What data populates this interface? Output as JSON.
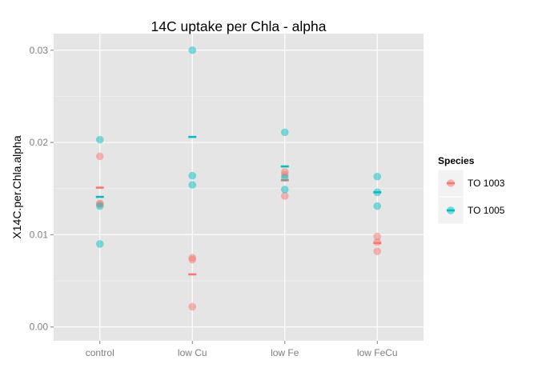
{
  "chart_data": {
    "type": "scatter",
    "title": "14C uptake per Chla - alpha",
    "xlabel": "",
    "ylabel": "X14C.per.Chla.alpha",
    "categories": [
      "control",
      "low Cu",
      "low Fe",
      "low FeCu"
    ],
    "ylim": [
      -0.0015,
      0.0318
    ],
    "yticks": [
      0.0,
      0.01,
      0.02,
      0.03
    ],
    "ytick_labels": [
      "0.00",
      "0.01",
      "0.02",
      "0.03"
    ],
    "grid": true,
    "legend": {
      "title": "Species",
      "placement": "right"
    },
    "series": [
      {
        "name": "TO 1003",
        "color": "#F8766D",
        "points": [
          {
            "x": "control",
            "y": 0.0185
          },
          {
            "x": "control",
            "y": 0.0134
          },
          {
            "x": "control",
            "y": 0.0133
          },
          {
            "x": "low Cu",
            "y": 0.0075
          },
          {
            "x": "low Cu",
            "y": 0.0073
          },
          {
            "x": "low Cu",
            "y": 0.0022
          },
          {
            "x": "low Fe",
            "y": 0.0168
          },
          {
            "x": "low Fe",
            "y": 0.0165
          },
          {
            "x": "low Fe",
            "y": 0.0142
          },
          {
            "x": "low FeCu",
            "y": 0.0098
          },
          {
            "x": "low FeCu",
            "y": 0.0092
          },
          {
            "x": "low FeCu",
            "y": 0.0082
          }
        ],
        "means": [
          {
            "x": "control",
            "y": 0.0151
          },
          {
            "x": "low Cu",
            "y": 0.0057
          },
          {
            "x": "low Fe",
            "y": 0.0159
          },
          {
            "x": "low FeCu",
            "y": 0.0091
          }
        ]
      },
      {
        "name": "TO 1005",
        "color": "#00BFC4",
        "points": [
          {
            "x": "control",
            "y": 0.0203
          },
          {
            "x": "control",
            "y": 0.0131
          },
          {
            "x": "control",
            "y": 0.009
          },
          {
            "x": "low Cu",
            "y": 0.03
          },
          {
            "x": "low Cu",
            "y": 0.0164
          },
          {
            "x": "low Cu",
            "y": 0.0154
          },
          {
            "x": "low Fe",
            "y": 0.0211
          },
          {
            "x": "low Fe",
            "y": 0.0162
          },
          {
            "x": "low Fe",
            "y": 0.0149
          },
          {
            "x": "low FeCu",
            "y": 0.0163
          },
          {
            "x": "low FeCu",
            "y": 0.0146
          },
          {
            "x": "low FeCu",
            "y": 0.0131
          }
        ],
        "means": [
          {
            "x": "control",
            "y": 0.0141
          },
          {
            "x": "low Cu",
            "y": 0.0206
          },
          {
            "x": "low Fe",
            "y": 0.0174
          },
          {
            "x": "low FeCu",
            "y": 0.0146
          }
        ]
      }
    ]
  }
}
